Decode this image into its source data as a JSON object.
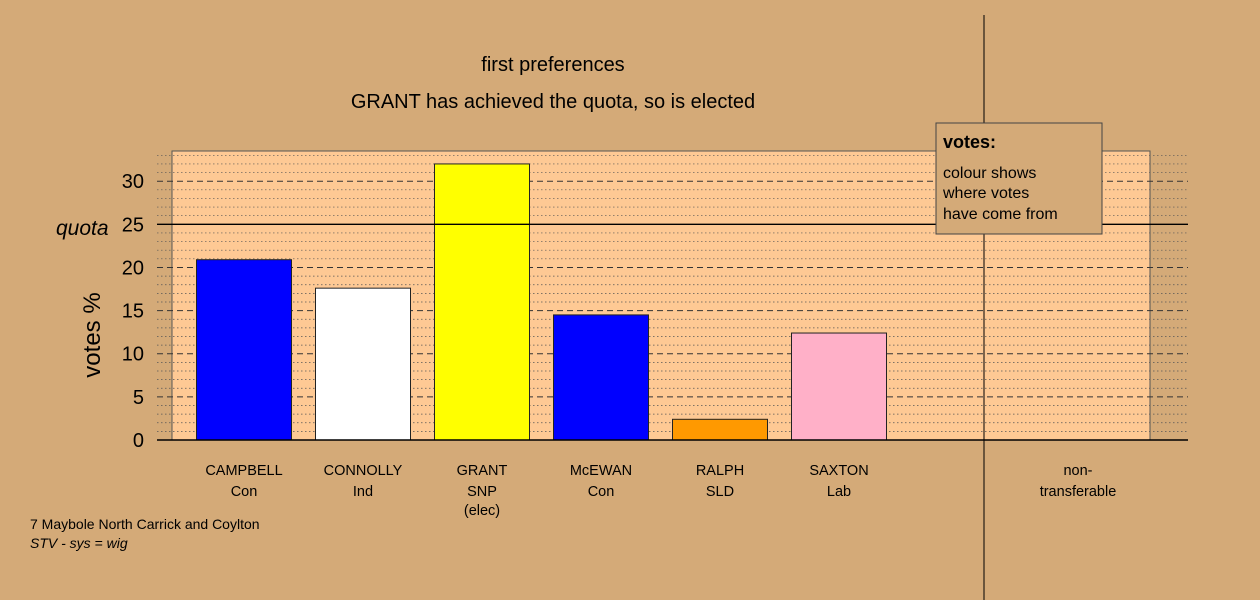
{
  "chart_data": {
    "type": "bar",
    "title": "first preferences",
    "subtitle": "GRANT has achieved the quota, so is elected",
    "ylabel": "votes %",
    "ylim": [
      0,
      33.5
    ],
    "yticks": [
      0,
      5,
      10,
      15,
      20,
      25,
      30
    ],
    "quota": 25,
    "quota_label": "quota",
    "grid": true,
    "categories": [
      {
        "name": "CAMPBELL",
        "party": "Con",
        "note": ""
      },
      {
        "name": "CONNOLLY",
        "party": "Ind",
        "note": ""
      },
      {
        "name": "GRANT",
        "party": "SNP",
        "note": "(elec)"
      },
      {
        "name": "McEWAN",
        "party": "Con",
        "note": ""
      },
      {
        "name": "RALPH",
        "party": "SLD",
        "note": ""
      },
      {
        "name": "SAXTON",
        "party": "Lab",
        "note": ""
      }
    ],
    "values": [
      20.9,
      17.6,
      32.0,
      14.5,
      2.4,
      12.4
    ],
    "colors": [
      "#0000ff",
      "#ffffff",
      "#ffff00",
      "#0000ff",
      "#ff9900",
      "#ffb0c8"
    ],
    "extra_column": {
      "line1": "non-",
      "line2": "transferable"
    },
    "legend": {
      "title": "votes:",
      "lines": [
        "colour shows",
        "where votes",
        "have come from"
      ],
      "placement": "top-right"
    }
  },
  "footer": {
    "line1": "7 Maybole North Carrick and Coylton",
    "line2": "STV - sys = wig"
  },
  "colors": {
    "background": "#d4aa78",
    "plot_background": "#fec994",
    "legend_background": "#d4aa78"
  }
}
